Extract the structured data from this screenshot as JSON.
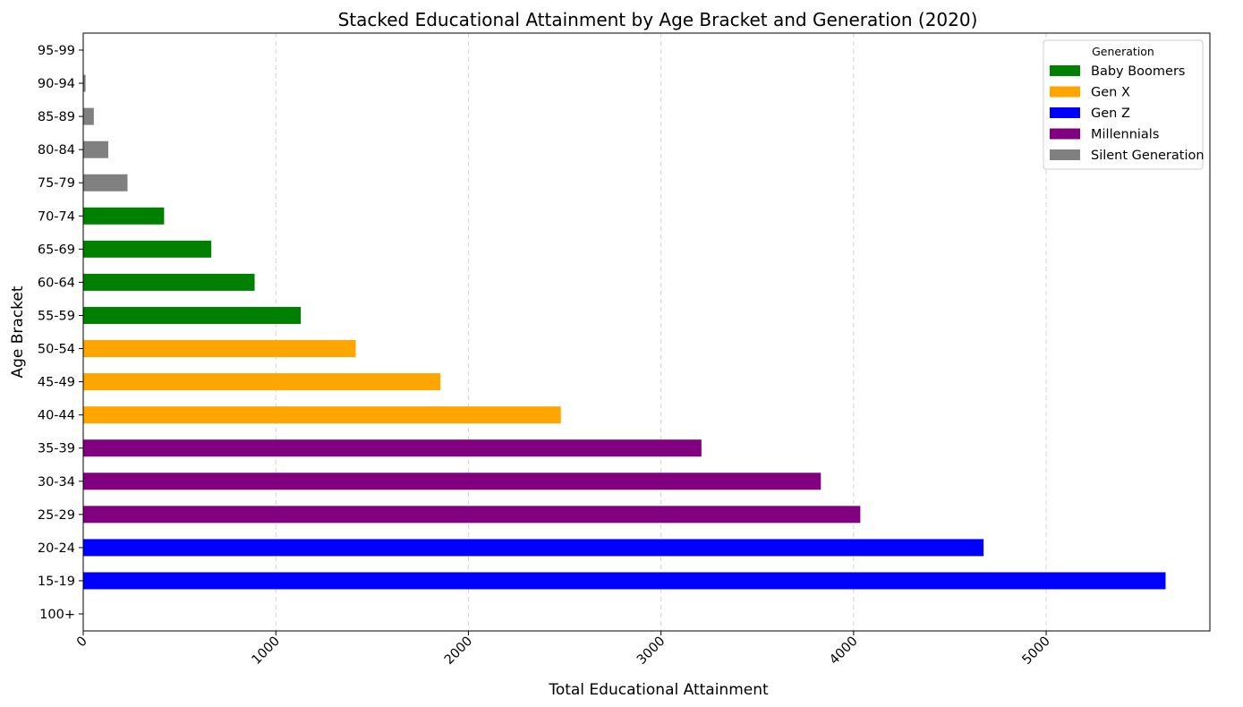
{
  "chart_data": {
    "type": "bar",
    "orientation": "horizontal",
    "stacked": true,
    "title": "Stacked Educational Attainment by Age Bracket and Generation (2020)",
    "xlabel": "Total Educational Attainment",
    "ylabel": "Age Bracket",
    "xlim": [
      0,
      5850
    ],
    "xticks": [
      0,
      1000,
      2000,
      3000,
      4000,
      5000
    ],
    "xtick_labels": [
      "0",
      "1000",
      "2000",
      "3000",
      "4000",
      "5000"
    ],
    "xtick_rotation": 45,
    "grid": {
      "x": true,
      "y": false,
      "style": "dashed"
    },
    "categories": [
      "100+",
      "15-19",
      "20-24",
      "25-29",
      "30-34",
      "35-39",
      "40-44",
      "45-49",
      "50-54",
      "55-59",
      "60-64",
      "65-69",
      "70-74",
      "75-79",
      "80-84",
      "85-89",
      "90-94",
      "95-99"
    ],
    "series": [
      {
        "name": "Baby Boomers",
        "color": "#008000",
        "values": [
          0,
          0,
          0,
          0,
          0,
          0,
          0,
          0,
          0,
          1130,
          890,
          665,
          420,
          0,
          0,
          0,
          0,
          0
        ]
      },
      {
        "name": "Gen X",
        "color": "#ffa500",
        "values": [
          0,
          0,
          0,
          0,
          0,
          0,
          2480,
          1855,
          1415,
          0,
          0,
          0,
          0,
          0,
          0,
          0,
          0,
          0
        ]
      },
      {
        "name": "Gen Z",
        "color": "#0000ff",
        "values": [
          0,
          5620,
          4675,
          0,
          0,
          0,
          0,
          0,
          0,
          0,
          0,
          0,
          0,
          0,
          0,
          0,
          0,
          0
        ]
      },
      {
        "name": "Millennials",
        "color": "#800080",
        "values": [
          0,
          0,
          0,
          4035,
          3830,
          3210,
          0,
          0,
          0,
          0,
          0,
          0,
          0,
          0,
          0,
          0,
          0,
          0
        ]
      },
      {
        "name": "Silent Generation",
        "color": "#808080",
        "values": [
          0,
          0,
          0,
          0,
          0,
          0,
          0,
          0,
          0,
          0,
          0,
          0,
          0,
          230,
          130,
          55,
          12,
          2
        ]
      }
    ],
    "legend": {
      "title": "Generation",
      "placement": "top-right"
    }
  }
}
